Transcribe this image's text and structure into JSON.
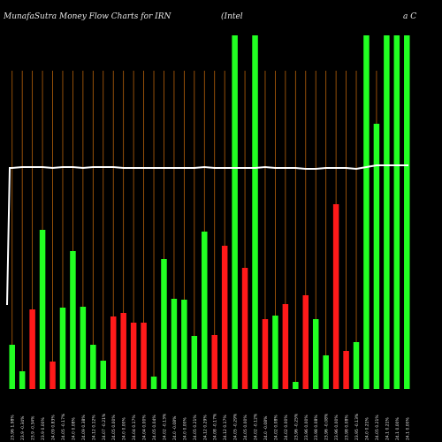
{
  "header": {
    "title": "MunafaSutra  Money Flow  Charts for IRN",
    "subtitle": "(Intel",
    "right": "a   C"
  },
  "chart_data": {
    "type": "bar",
    "title": "MunafaSutra  Money Flow  Charts for IRN",
    "ylim": [
      0,
      440
    ],
    "grid": true,
    "categories": [
      "02:00 Fri 13 Dec 2024",
      "01:00 Fri 13 Dec 2024",
      "23:00 Thu 12 Dec 2024",
      "22:00 Thu 12 Dec 2024",
      "21:00 Thu 12 Dec 2024",
      "20:00 Thu 12 Dec 2024",
      "19:00 Thu 12 Dec 2024",
      "18:00 Thu 12 Dec 2024",
      "17:00 Thu 12 Dec 2024",
      "16:00 Thu 12 Dec 2024",
      "15:00 Thu 12 Dec 2024",
      "14:00 Thu 12 Dec 2024",
      "13:00 Thu 12 Dec 2024",
      "12:00 Thu 12 Dec 2024",
      "11:00 Thu 12 Dec 2024",
      "10:00 Thu 12 Dec 2024",
      "09:00 Thu 12 Dec 2024",
      "08:00 Thu 12 Dec 2024",
      "07:00 Thu 12 Dec 2024",
      "06:00 Thu 12 Dec 2024",
      "05:00 Thu 12 Dec 2024",
      "04:00 Thu 12 Dec 2024",
      "03:00 Thu 12 Dec 2024",
      "02:00 Thu 12 Dec 2024",
      "01:00 Thu 12 Dec 2024",
      "23:00 Wed 11 Dec 2024",
      "22:00 Wed 11 Dec 2024",
      "21:00 Wed 11 Dec 2024",
      "20:00 Wed 11 Dec 2024",
      "19:00 Wed 11 Dec 2024",
      "18:00 Wed 11 Dec 2024",
      "17:00 Wed 11 Dec 2024",
      "16:00 Wed 11 Dec 2024",
      "15:00 Wed 11 Dec 2024",
      "14:00 Wed 11 Dec 2024",
      "13:00 Wed 11 Dec 2024",
      "12:00 Wed 11 Dec 2024",
      "11:00 Wed 11 Dec 2024",
      "10:00 Wed 11 Dec 2024",
      "09:00 Wed 11 Dec 2024"
    ],
    "tick_labels": [
      "23.96 1.98%",
      "23.9 -0.34%",
      "23.9 -0.34%",
      "23.9 0.00%",
      "24.09 0.83%",
      "24.05 -0.17%",
      "24.0 0.08%",
      "24.09 0.38%",
      "24.12 0.12%",
      "24.07 -0.21%",
      "24.05 0.00%",
      "24.0 0.00%",
      "24.04 0.17%",
      "24.04 0.00%",
      "24.05 0.04%",
      "24.02 -0.13%",
      "24.0 -0.08%",
      "24.0 0.00%",
      "24.05 0.21%",
      "24.12 0.29%",
      "24.08 -0.17%",
      "24.12 0.17%",
      "24.05 -0.29%",
      "24.05 0.00%",
      "24.02 -0.12%",
      "24.0 -0.08%",
      "24.02 0.08%",
      "24.02 0.00%",
      "23.96 -0.25%",
      "23.96 0.00%",
      "23.98 0.08%",
      "23.96 -0.08%",
      "23.96 0.00%",
      "23.98 0.08%",
      "23.95 -0.13%",
      "24.0 0.21%",
      "24.05 0.21%",
      "24.1 0.21%",
      "24.1 0.00%",
      "24.1 0.00%"
    ],
    "series": [
      {
        "values": [
          50,
          20,
          90,
          180,
          31,
          92,
          156,
          93,
          50,
          32,
          82,
          86,
          75,
          75,
          14,
          147,
          102,
          101,
          60,
          178,
          61,
          162,
          400,
          137,
          400,
          79,
          83,
          96,
          8,
          106,
          79,
          38,
          209,
          43,
          53,
          400,
          300,
          400,
          400,
          400
        ],
        "colors": [
          "g",
          "g",
          "r",
          "g",
          "r",
          "g",
          "g",
          "g",
          "g",
          "g",
          "r",
          "r",
          "r",
          "r",
          "g",
          "g",
          "g",
          "g",
          "g",
          "g",
          "r",
          "r",
          "g",
          "r",
          "g",
          "r",
          "g",
          "r",
          "g",
          "r",
          "g",
          "g",
          "r",
          "r",
          "g",
          "g",
          "g",
          "g",
          "g",
          "g"
        ]
      }
    ],
    "line": [
      250,
      251,
      251,
      251,
      250,
      251,
      251,
      250,
      251,
      251,
      251,
      250,
      250,
      250,
      250,
      250,
      250,
      250,
      250,
      251,
      250,
      250,
      250,
      250,
      250,
      251,
      250,
      250,
      250,
      249,
      249,
      250,
      250,
      250,
      249,
      251,
      253,
      253,
      253,
      253
    ],
    "line_start": 95
  }
}
